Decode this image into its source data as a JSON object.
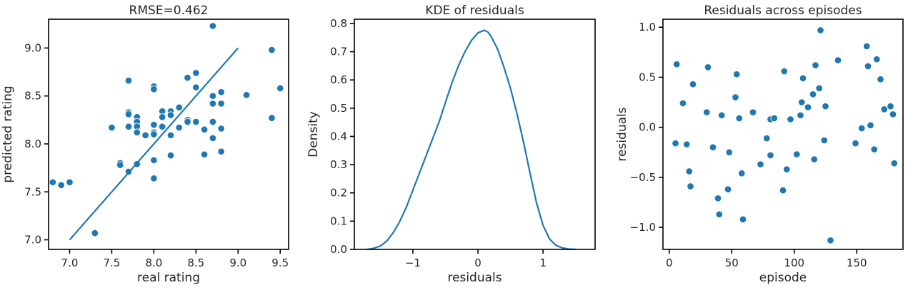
{
  "colors": {
    "series": "#1f77b4",
    "point_edge": "#ffffff",
    "axes": "#000000",
    "text": "#262626"
  },
  "chart_data": [
    {
      "type": "scatter",
      "title": "RMSE=0.462",
      "xlabel": "real rating",
      "ylabel": "predicted rating",
      "xlim": [
        6.75,
        9.6
      ],
      "ylim": [
        6.9,
        9.3
      ],
      "xticks": [
        7.0,
        7.5,
        8.0,
        8.5,
        9.0,
        9.5
      ],
      "xtick_labels": [
        "7.0",
        "7.5",
        "8.0",
        "8.5",
        "9.0",
        "9.5"
      ],
      "yticks": [
        7.0,
        7.5,
        8.0,
        8.5,
        9.0
      ],
      "ytick_labels": [
        "7.0",
        "7.5",
        "8.0",
        "8.5",
        "9.0"
      ],
      "grid": false,
      "points": [
        [
          6.8,
          7.6
        ],
        [
          6.9,
          7.57
        ],
        [
          7.0,
          7.6
        ],
        [
          7.3,
          7.07
        ],
        [
          7.5,
          8.17
        ],
        [
          7.6,
          7.8
        ],
        [
          7.6,
          7.78
        ],
        [
          7.7,
          8.66
        ],
        [
          7.7,
          8.33
        ],
        [
          7.7,
          8.31
        ],
        [
          7.7,
          8.18
        ],
        [
          7.7,
          7.71
        ],
        [
          7.8,
          8.28
        ],
        [
          7.8,
          8.23
        ],
        [
          7.8,
          8.18
        ],
        [
          7.8,
          8.12
        ],
        [
          7.8,
          7.79
        ],
        [
          7.9,
          8.09
        ],
        [
          8.0,
          8.6
        ],
        [
          8.0,
          8.57
        ],
        [
          8.0,
          8.2
        ],
        [
          8.0,
          8.12
        ],
        [
          8.0,
          8.1
        ],
        [
          8.0,
          7.83
        ],
        [
          8.0,
          7.64
        ],
        [
          8.1,
          8.34
        ],
        [
          8.1,
          8.28
        ],
        [
          8.1,
          8.18
        ],
        [
          8.2,
          8.34
        ],
        [
          8.2,
          8.3
        ],
        [
          8.2,
          8.09
        ],
        [
          8.2,
          7.88
        ],
        [
          8.3,
          8.38
        ],
        [
          8.3,
          8.17
        ],
        [
          8.4,
          8.69
        ],
        [
          8.4,
          8.25
        ],
        [
          8.4,
          8.23
        ],
        [
          8.5,
          8.74
        ],
        [
          8.5,
          8.59
        ],
        [
          8.5,
          8.23
        ],
        [
          8.6,
          8.15
        ],
        [
          8.6,
          7.89
        ],
        [
          8.7,
          9.23
        ],
        [
          8.7,
          8.5
        ],
        [
          8.7,
          8.42
        ],
        [
          8.7,
          8.23
        ],
        [
          8.7,
          8.06
        ],
        [
          8.8,
          8.54
        ],
        [
          8.8,
          8.42
        ],
        [
          8.8,
          8.16
        ],
        [
          8.8,
          7.92
        ],
        [
          9.1,
          8.51
        ],
        [
          9.4,
          8.98
        ],
        [
          9.4,
          8.27
        ],
        [
          9.5,
          8.58
        ]
      ],
      "reference_line": [
        [
          7.0,
          7.0
        ],
        [
          9.0,
          9.0
        ]
      ]
    },
    {
      "type": "line",
      "title": "KDE of residuals",
      "xlabel": "residuals",
      "ylabel": "Density",
      "xlim": [
        -1.9,
        1.8
      ],
      "ylim": [
        0.0,
        0.815
      ],
      "xticks": [
        -1,
        0,
        1
      ],
      "xtick_labels": [
        "−1",
        "0",
        "1"
      ],
      "yticks": [
        0.0,
        0.1,
        0.2,
        0.3,
        0.4,
        0.5,
        0.6,
        0.7,
        0.8
      ],
      "ytick_labels": [
        "0.0",
        "0.1",
        "0.2",
        "0.3",
        "0.4",
        "0.5",
        "0.6",
        "0.7",
        "0.8"
      ],
      "grid": false,
      "x": [
        -1.7,
        -1.6,
        -1.5,
        -1.4,
        -1.3,
        -1.2,
        -1.1,
        -1.0,
        -0.9,
        -0.8,
        -0.7,
        -0.6,
        -0.5,
        -0.4,
        -0.3,
        -0.2,
        -0.1,
        0.0,
        0.1,
        0.15,
        0.2,
        0.3,
        0.4,
        0.5,
        0.6,
        0.7,
        0.8,
        0.9,
        1.0,
        1.1,
        1.2,
        1.3,
        1.4,
        1.5
      ],
      "y": [
        0.0,
        0.004,
        0.012,
        0.03,
        0.06,
        0.1,
        0.15,
        0.21,
        0.27,
        0.33,
        0.39,
        0.45,
        0.52,
        0.59,
        0.65,
        0.7,
        0.74,
        0.767,
        0.776,
        0.77,
        0.755,
        0.71,
        0.645,
        0.57,
        0.48,
        0.38,
        0.27,
        0.165,
        0.085,
        0.037,
        0.014,
        0.005,
        0.001,
        0.0
      ]
    },
    {
      "type": "scatter",
      "title": "Residuals across episodes",
      "xlabel": "episode",
      "ylabel": "residuals",
      "xlim": [
        -5,
        187
      ],
      "ylim": [
        -1.22,
        1.08
      ],
      "xticks": [
        0,
        50,
        100,
        150
      ],
      "xtick_labels": [
        "0",
        "50",
        "100",
        "150"
      ],
      "yticks": [
        -1.0,
        -0.5,
        0.0,
        0.5,
        1.0
      ],
      "ytick_labels": [
        "−1.0",
        "−0.5",
        "0.0",
        "0.5",
        "1.0"
      ],
      "grid": false,
      "points": [
        [
          5,
          -0.16
        ],
        [
          6,
          0.63
        ],
        [
          11,
          0.24
        ],
        [
          14,
          -0.17
        ],
        [
          16,
          -0.44
        ],
        [
          17,
          -0.59
        ],
        [
          19,
          0.43
        ],
        [
          30,
          0.15
        ],
        [
          31,
          0.6
        ],
        [
          35,
          -0.2
        ],
        [
          39,
          -0.71
        ],
        [
          40,
          -0.87
        ],
        [
          42,
          0.12
        ],
        [
          47,
          -0.62
        ],
        [
          48,
          -0.25
        ],
        [
          53,
          0.3
        ],
        [
          54,
          0.53
        ],
        [
          56,
          0.09
        ],
        [
          58,
          -0.46
        ],
        [
          59,
          -0.92
        ],
        [
          67,
          0.15
        ],
        [
          73,
          -0.37
        ],
        [
          78,
          -0.11
        ],
        [
          81,
          -0.28
        ],
        [
          81,
          0.08
        ],
        [
          84,
          0.09
        ],
        [
          91,
          -0.63
        ],
        [
          92,
          0.56
        ],
        [
          94,
          -0.42
        ],
        [
          97,
          0.08
        ],
        [
          102,
          -0.27
        ],
        [
          105,
          0.12
        ],
        [
          106,
          0.25
        ],
        [
          107,
          0.49
        ],
        [
          111,
          0.2
        ],
        [
          115,
          0.33
        ],
        [
          116,
          -0.32
        ],
        [
          117,
          0.62
        ],
        [
          120,
          0.39
        ],
        [
          121,
          0.97
        ],
        [
          124,
          -0.13
        ],
        [
          125,
          0.21
        ],
        [
          129,
          -1.13
        ],
        [
          135,
          0.67
        ],
        [
          149,
          -0.16
        ],
        [
          154,
          -0.01
        ],
        [
          158,
          0.81
        ],
        [
          159,
          0.61
        ],
        [
          161,
          0.02
        ],
        [
          164,
          -0.22
        ],
        [
          166,
          0.68
        ],
        [
          169,
          0.48
        ],
        [
          172,
          0.18
        ],
        [
          177,
          0.21
        ],
        [
          179,
          0.13
        ],
        [
          180,
          -0.36
        ]
      ]
    }
  ]
}
